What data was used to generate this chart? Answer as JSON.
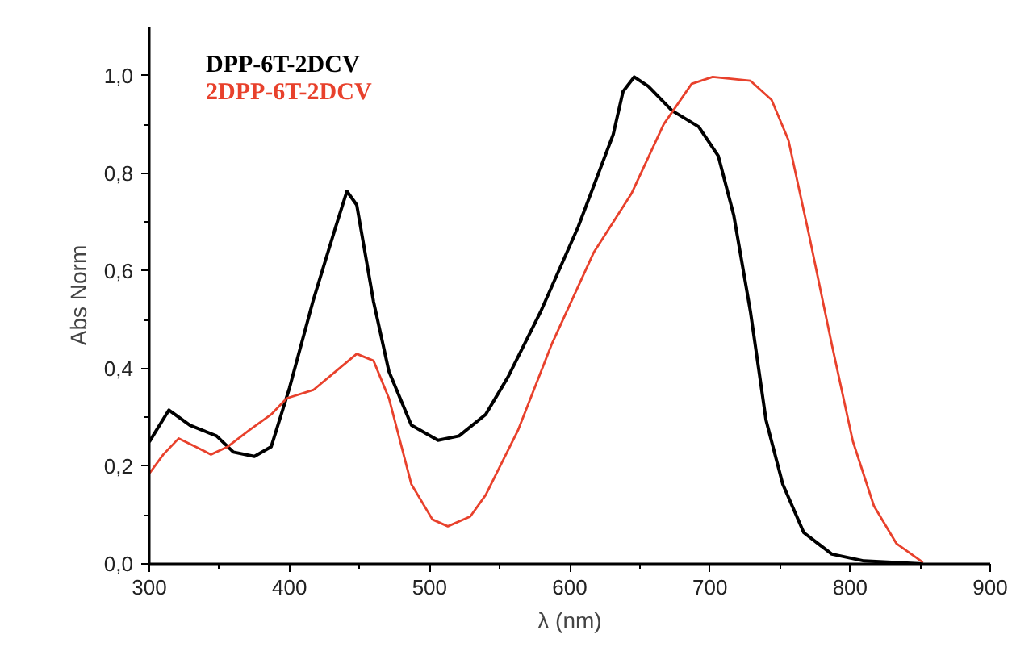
{
  "chart_data": {
    "type": "line",
    "xlabel": "λ (nm)",
    "ylabel": "Abs Norm",
    "xlim": [
      300,
      900
    ],
    "xticks": [
      300,
      400,
      500,
      600,
      700,
      800,
      900
    ],
    "ylim": [
      0,
      1.1
    ],
    "yticks": [
      {
        "value": 0,
        "label": "0,0"
      },
      {
        "value": 0.2,
        "label": "0,2"
      },
      {
        "value": 0.4,
        "label": "0,4"
      },
      {
        "value": 0.6,
        "label": "0,6"
      },
      {
        "value": 0.8,
        "label": "0,8"
      },
      {
        "value": 1.0,
        "label": "1,0"
      }
    ],
    "grid": false,
    "legend": "top left",
    "line_style": "solid",
    "marker": "none",
    "series": [
      {
        "name": "DPP-6T-2DCV",
        "color": "#000000",
        "x": [
          300,
          314,
          329,
          348,
          360,
          375,
          387,
          400,
          417,
          433,
          441,
          448,
          460,
          471,
          487,
          506,
          521,
          540,
          556,
          579,
          606,
          631,
          638,
          646,
          656,
          673,
          692,
          706,
          717,
          729,
          740,
          752,
          767,
          787,
          810,
          852
        ],
        "values": [
          0.25,
          0.315,
          0.284,
          0.262,
          0.229,
          0.22,
          0.24,
          0.36,
          0.54,
          0.69,
          0.763,
          0.735,
          0.537,
          0.394,
          0.284,
          0.253,
          0.262,
          0.306,
          0.383,
          0.515,
          0.69,
          0.879,
          0.967,
          0.997,
          0.978,
          0.928,
          0.895,
          0.835,
          0.714,
          0.515,
          0.295,
          0.163,
          0.064,
          0.02,
          0.006,
          0.0
        ]
      },
      {
        "name": "2DPP-6T-2DCV",
        "color": "#e8412c",
        "x": [
          300,
          310,
          321,
          333,
          344,
          356,
          371,
          387,
          398,
          417,
          433,
          448,
          460,
          471,
          487,
          502,
          513,
          529,
          540,
          563,
          587,
          617,
          644,
          667,
          687,
          702,
          729,
          744,
          756,
          771,
          787,
          802,
          817,
          833,
          852
        ],
        "values": [
          0.185,
          0.224,
          0.257,
          0.24,
          0.224,
          0.24,
          0.273,
          0.306,
          0.339,
          0.356,
          0.394,
          0.43,
          0.416,
          0.339,
          0.163,
          0.091,
          0.077,
          0.097,
          0.141,
          0.273,
          0.449,
          0.637,
          0.758,
          0.9,
          0.983,
          0.997,
          0.989,
          0.95,
          0.868,
          0.67,
          0.449,
          0.251,
          0.119,
          0.042,
          0.003
        ]
      }
    ]
  }
}
